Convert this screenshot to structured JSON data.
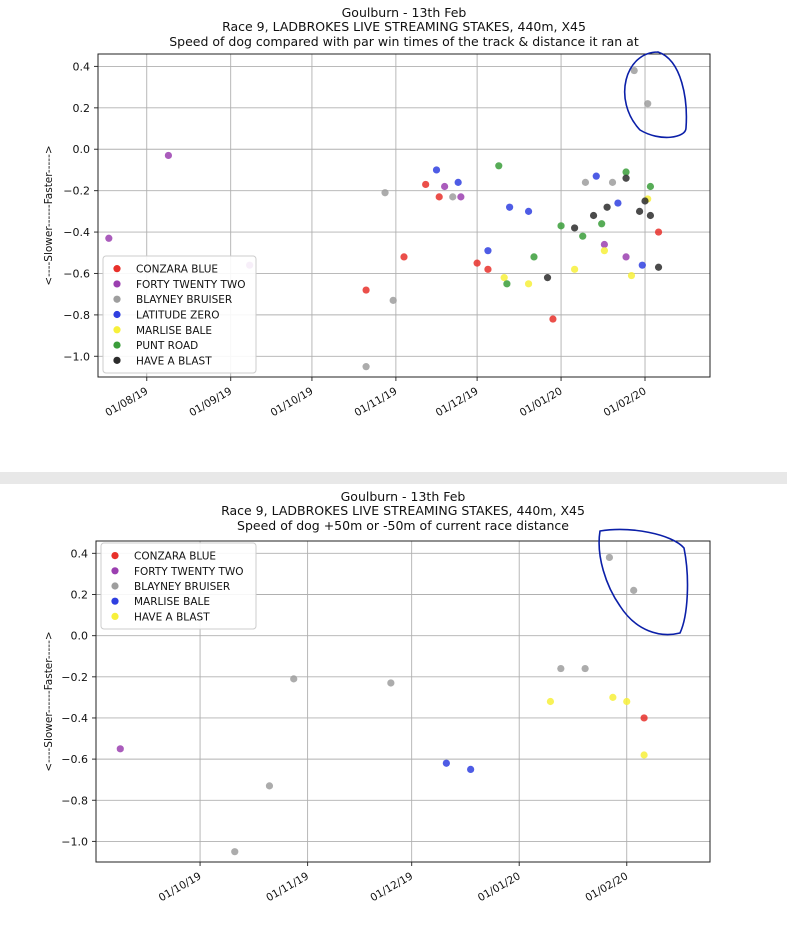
{
  "chart_data": [
    {
      "type": "scatter",
      "title_lines": [
        "Goulburn  - 13th Feb",
        "Race 9, LADBROKES LIVE STREAMING STAKES, 440m, X45",
        "Speed of dog compared with par win times of the track & distance it ran at"
      ],
      "ylabel": "<----Slower------Faster----->",
      "xlabel": "",
      "x_is_date": true,
      "xlim": [
        "2019-07-14",
        "2020-02-25"
      ],
      "ylim": [
        -1.1,
        0.46
      ],
      "x_ticks": [
        "01/08/19",
        "01/09/19",
        "01/10/19",
        "01/11/19",
        "01/12/19",
        "01/01/20",
        "01/02/20"
      ],
      "y_ticks": [
        "0.4",
        "0.2",
        "0.0",
        "−0.2",
        "−0.4",
        "−0.6",
        "−0.8",
        "−1.0"
      ],
      "grid": true,
      "legend_position": "lower-left",
      "series": [
        {
          "name": "CONZARA BLUE",
          "color": "#e8302a",
          "points": [
            [
              "2019-10-21",
              -0.68
            ],
            [
              "2019-11-04",
              -0.52
            ],
            [
              "2019-11-12",
              -0.17
            ],
            [
              "2019-11-17",
              -0.23
            ],
            [
              "2019-12-01",
              -0.55
            ],
            [
              "2019-12-05",
              -0.58
            ],
            [
              "2019-12-29",
              -0.82
            ],
            [
              "2020-02-06",
              -0.4
            ]
          ]
        },
        {
          "name": "FORTY TWENTY TWO",
          "color": "#9b3fb0",
          "points": [
            [
              "2019-07-18",
              -0.43
            ],
            [
              "2019-08-09",
              -0.03
            ],
            [
              "2019-09-08",
              -0.56
            ],
            [
              "2019-11-19",
              -0.18
            ],
            [
              "2019-11-25",
              -0.23
            ],
            [
              "2020-01-17",
              -0.46
            ],
            [
              "2020-01-25",
              -0.52
            ]
          ]
        },
        {
          "name": "BLAYNEY BRUISER",
          "color": "#9e9e9e",
          "points": [
            [
              "2019-10-21",
              -1.05
            ],
            [
              "2019-10-31",
              -0.73
            ],
            [
              "2019-10-28",
              -0.21
            ],
            [
              "2019-11-22",
              -0.23
            ],
            [
              "2020-01-10",
              -0.16
            ],
            [
              "2020-01-20",
              -0.16
            ],
            [
              "2020-01-28",
              0.38
            ],
            [
              "2020-02-02",
              0.22
            ]
          ]
        },
        {
          "name": "LATITUDE ZERO",
          "color": "#2f3fe0",
          "points": [
            [
              "2019-11-16",
              -0.1
            ],
            [
              "2019-11-24",
              -0.16
            ],
            [
              "2019-12-05",
              -0.49
            ],
            [
              "2019-12-13",
              -0.28
            ],
            [
              "2019-12-20",
              -0.3
            ],
            [
              "2020-01-14",
              -0.13
            ],
            [
              "2020-01-22",
              -0.26
            ],
            [
              "2020-01-31",
              -0.56
            ]
          ]
        },
        {
          "name": "MARLISE BALE",
          "color": "#f7f03a",
          "points": [
            [
              "2019-12-11",
              -0.62
            ],
            [
              "2019-12-20",
              -0.65
            ],
            [
              "2020-01-06",
              -0.58
            ],
            [
              "2020-01-17",
              -0.49
            ],
            [
              "2020-01-27",
              -0.61
            ],
            [
              "2020-02-02",
              -0.24
            ]
          ]
        },
        {
          "name": "PUNT ROAD",
          "color": "#3a9d3a",
          "points": [
            [
              "2019-12-09",
              -0.08
            ],
            [
              "2019-12-12",
              -0.65
            ],
            [
              "2019-12-22",
              -0.52
            ],
            [
              "2020-01-01",
              -0.37
            ],
            [
              "2020-01-09",
              -0.42
            ],
            [
              "2020-01-16",
              -0.36
            ],
            [
              "2020-01-25",
              -0.11
            ],
            [
              "2020-02-03",
              -0.18
            ]
          ]
        },
        {
          "name": "HAVE A BLAST",
          "color": "#2b2b2b",
          "points": [
            [
              "2019-12-27",
              -0.62
            ],
            [
              "2020-01-06",
              -0.38
            ],
            [
              "2020-01-13",
              -0.32
            ],
            [
              "2020-01-18",
              -0.28
            ],
            [
              "2020-01-25",
              -0.14
            ],
            [
              "2020-01-30",
              -0.3
            ],
            [
              "2020-02-01",
              -0.25
            ],
            [
              "2020-02-03",
              -0.32
            ],
            [
              "2020-02-06",
              -0.57
            ]
          ]
        }
      ]
    },
    {
      "type": "scatter",
      "title_lines": [
        "Goulburn  - 13th Feb",
        "Race 9, LADBROKES LIVE STREAMING STAKES, 440m, X45",
        "Speed of dog +50m or -50m of current race distance"
      ],
      "ylabel": "<----Slower------Faster----->",
      "xlabel": "",
      "x_is_date": true,
      "xlim": [
        "2019-09-01",
        "2020-02-25"
      ],
      "ylim": [
        -1.1,
        0.46
      ],
      "x_ticks": [
        "01/10/19",
        "01/11/19",
        "01/12/19",
        "01/01/20",
        "01/02/20"
      ],
      "y_ticks": [
        "0.4",
        "0.2",
        "0.0",
        "−0.2",
        "−0.4",
        "−0.6",
        "−0.8",
        "−1.0"
      ],
      "grid": true,
      "legend_position": "upper-left",
      "series": [
        {
          "name": "CONZARA BLUE",
          "color": "#e8302a",
          "points": [
            [
              "2020-02-06",
              -0.4
            ]
          ]
        },
        {
          "name": "FORTY TWENTY TWO",
          "color": "#9b3fb0",
          "points": [
            [
              "2019-09-08",
              -0.55
            ]
          ]
        },
        {
          "name": "BLAYNEY BRUISER",
          "color": "#9e9e9e",
          "points": [
            [
              "2019-10-11",
              -1.05
            ],
            [
              "2019-10-21",
              -0.73
            ],
            [
              "2019-10-28",
              -0.21
            ],
            [
              "2019-11-25",
              -0.23
            ],
            [
              "2020-01-13",
              -0.16
            ],
            [
              "2020-01-20",
              -0.16
            ],
            [
              "2020-01-27",
              0.38
            ],
            [
              "2020-02-03",
              0.22
            ]
          ]
        },
        {
          "name": "MARLISE BALE",
          "color": "#2f3fe0",
          "points": [
            [
              "2019-12-11",
              -0.62
            ],
            [
              "2019-12-18",
              -0.65
            ]
          ]
        },
        {
          "name": "HAVE A BLAST",
          "color": "#f7f03a",
          "points": [
            [
              "2020-01-10",
              -0.32
            ],
            [
              "2020-01-28",
              -0.3
            ],
            [
              "2020-02-01",
              -0.32
            ],
            [
              "2020-02-06",
              -0.58
            ]
          ]
        }
      ]
    }
  ],
  "annotation_color": "#0b1fa8"
}
